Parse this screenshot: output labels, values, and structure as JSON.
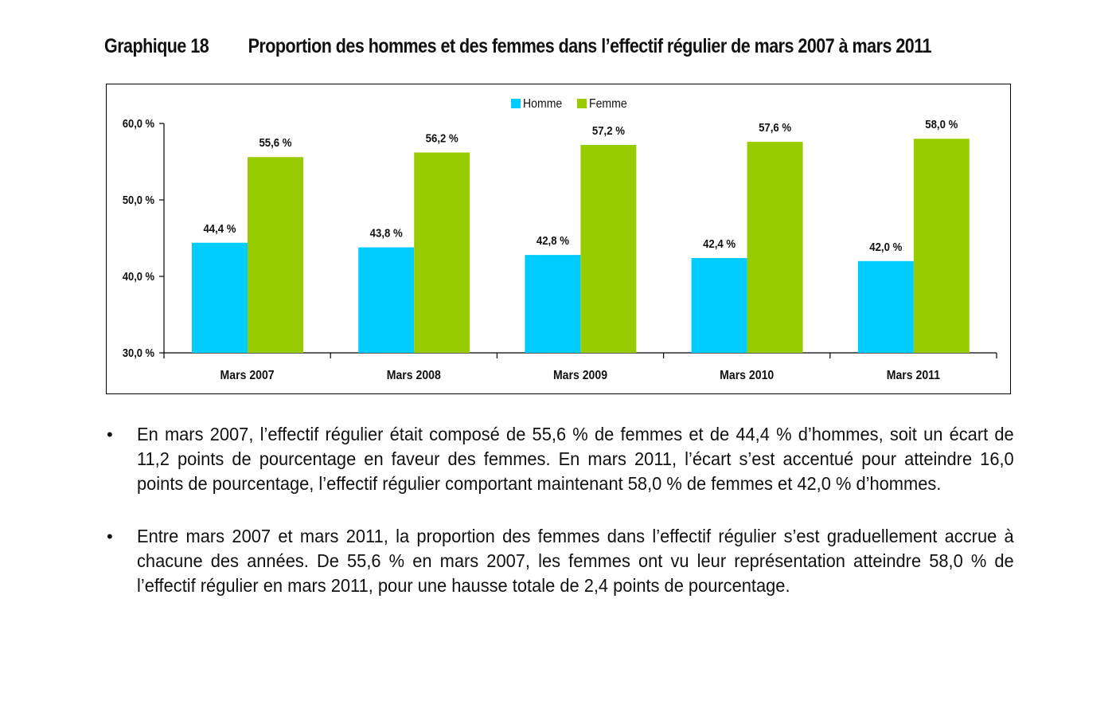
{
  "page": {
    "figure_number": "Graphique 18",
    "figure_title": "Proportion des hommes et des femmes dans l’effectif régulier de mars 2007 à mars 2011"
  },
  "chart_data": {
    "type": "bar",
    "title": "Proportion des hommes et des femmes dans l’effectif régulier de mars 2007 à mars 2011",
    "xlabel": "",
    "ylabel": "",
    "categories": [
      "Mars 2007",
      "Mars 2008",
      "Mars 2009",
      "Mars 2010",
      "Mars 2011"
    ],
    "series": [
      {
        "name": "Homme",
        "color": "#00CCFF",
        "values": [
          44.4,
          43.8,
          42.8,
          42.4,
          42.0
        ],
        "labels": [
          "44,4 %",
          "43,8 %",
          "42,8 %",
          "42,4 %",
          "42,0 %"
        ]
      },
      {
        "name": "Femme",
        "color": "#99CC00",
        "values": [
          55.6,
          56.2,
          57.2,
          57.6,
          58.0
        ],
        "labels": [
          "55,6 %",
          "56,2 %",
          "57,2 %",
          "57,6 %",
          "58,0 %"
        ]
      }
    ],
    "ylim": [
      30,
      60
    ],
    "yticks": [
      30,
      40,
      50,
      60
    ],
    "ytick_labels": [
      "30,0 %",
      "40,0 %",
      "50,0 %",
      "60,0 %"
    ],
    "grid": false,
    "legend_position": "top-center"
  },
  "bullets": [
    {
      "text": "En mars 2007, l’effectif régulier était composé de 55,6 % de femmes et de 44,4 % d’hommes, soit un écart de 11,2 points de pourcentage en faveur des femmes. En mars 2011, l’écart s’est accentué pour atteindre 16,0 points de pourcentage, l’effectif régulier comportant maintenant 58,0 % de femmes et 42,0 % d’hommes."
    },
    {
      "text": "Entre mars 2007 et mars 2011, la proportion des femmes dans l’effectif régulier s’est graduellement accrue à chacune des années. De 55,6 % en mars 2007, les femmes ont vu leur représentation atteindre 58,0 % de l’effectif régulier en mars 2011, pour une hausse totale de 2,4 points de pourcentage."
    }
  ],
  "bullet_symbol": "•"
}
